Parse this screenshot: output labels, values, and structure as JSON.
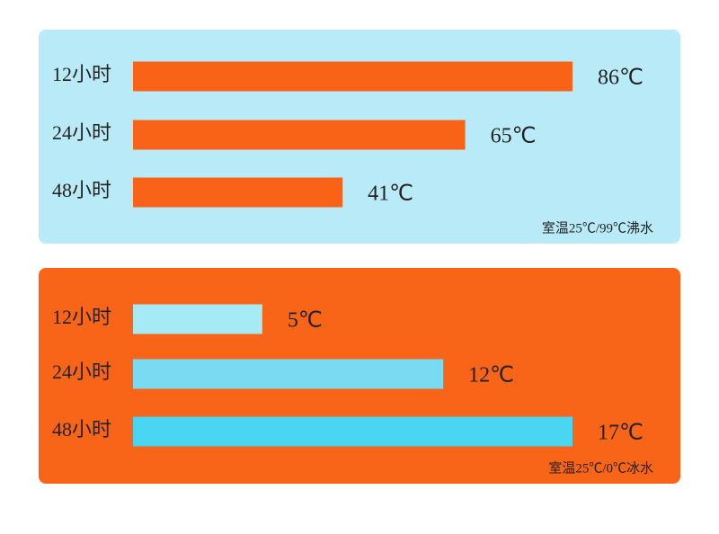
{
  "chart_data": [
    {
      "type": "bar",
      "orientation": "horizontal",
      "panel_color": "#b8ebf7",
      "color": "#f96318",
      "categories": [
        "12小时",
        "24小时",
        "48小时"
      ],
      "values": [
        86,
        65,
        41
      ],
      "value_labels": [
        "86℃",
        "65℃",
        "41℃"
      ],
      "note": "室温25℃/99℃沸水"
    },
    {
      "type": "bar",
      "orientation": "horizontal",
      "panel_color": "#f86418",
      "colors": [
        "#a6eaf6",
        "#79daf1",
        "#4ad5f3"
      ],
      "categories": [
        "12小时",
        "24小时",
        "48小时"
      ],
      "values": [
        5,
        12,
        17
      ],
      "value_labels": [
        "5℃",
        "12℃",
        "17℃"
      ],
      "note": "室温25℃/0℃冰水"
    }
  ]
}
